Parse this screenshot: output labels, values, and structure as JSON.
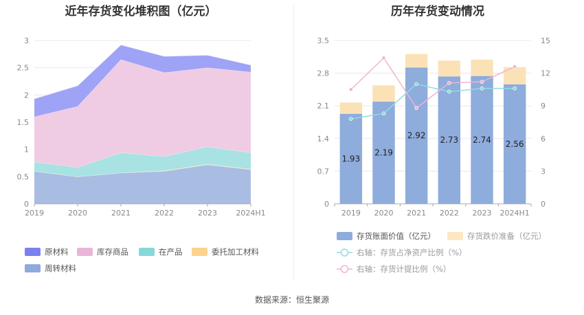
{
  "source_label": "数据来源：恒生聚源",
  "chart_data": [
    {
      "type": "area",
      "stacked": true,
      "title": "近年存货变化堆积图（亿元）",
      "categories": [
        "2019",
        "2020",
        "2021",
        "2022",
        "2023",
        "2024H1"
      ],
      "y_ticks": [
        "0",
        "0.5",
        "1",
        "1.5",
        "2",
        "2.5",
        "3"
      ],
      "ylim": [
        0,
        3
      ],
      "grid": true,
      "series": [
        {
          "name": "周转材料",
          "color": "#a9bde3",
          "values": [
            0.6,
            0.5,
            0.57,
            0.6,
            0.72,
            0.63
          ]
        },
        {
          "name": "委托加工材料",
          "color": "#fbd79a",
          "values": [
            0.0,
            0.0,
            0.0,
            0.01,
            0.01,
            0.01
          ]
        },
        {
          "name": "在产品",
          "color": "#a8e2e2",
          "values": [
            0.17,
            0.17,
            0.37,
            0.26,
            0.32,
            0.3
          ]
        },
        {
          "name": "库存商品",
          "color": "#f0cbe4",
          "values": [
            0.83,
            1.12,
            1.71,
            1.54,
            1.45,
            1.48
          ]
        },
        {
          "name": "原材料",
          "color": "#9fa3f6",
          "values": [
            0.33,
            0.38,
            0.27,
            0.3,
            0.23,
            0.13
          ]
        }
      ],
      "legend": {
        "placement": "bottom-left",
        "items": [
          {
            "label": "原材料",
            "color": "#7b80f0"
          },
          {
            "label": "库存商品",
            "color": "#eab6d8"
          },
          {
            "label": "在产品",
            "color": "#88d8d8"
          },
          {
            "label": "委托加工材料",
            "color": "#fbd38e"
          },
          {
            "label": "周转材料",
            "color": "#8faadc"
          }
        ]
      }
    },
    {
      "type": "bar",
      "stacked": true,
      "title": "历年存货变动情况",
      "categories": [
        "2019",
        "2020",
        "2021",
        "2022",
        "2023",
        "2024H1"
      ],
      "y_ticks_left": [
        "0",
        "0.7",
        "1.4",
        "2.1",
        "2.8",
        "3.5"
      ],
      "y_ticks_right": [
        "0",
        "3",
        "6",
        "9",
        "12",
        "15"
      ],
      "ylim_left": [
        0,
        3.5
      ],
      "ylim_right": [
        0,
        15
      ],
      "grid": true,
      "bars": [
        {
          "name": "存货账面价值（亿元）",
          "color": "#8eacdc",
          "values": [
            1.93,
            2.19,
            2.92,
            2.73,
            2.74,
            2.56
          ],
          "labels": [
            "1.93",
            "2.19",
            "2.92",
            "2.73",
            "2.74",
            "2.56"
          ]
        },
        {
          "name": "存货跌价准备（亿元）",
          "color": "#fbe2b6",
          "values": [
            0.24,
            0.35,
            0.29,
            0.34,
            0.35,
            0.37
          ]
        }
      ],
      "lines": [
        {
          "name": "右轴：存货占净资产比例（%）",
          "color": "#8fdede",
          "values": [
            7.8,
            8.3,
            11.0,
            10.3,
            10.6,
            10.6
          ]
        },
        {
          "name": "右轴：存货计提比例（%）",
          "color": "#eeb4d4",
          "values": [
            10.5,
            13.4,
            8.8,
            11.1,
            11.2,
            12.6
          ]
        }
      ],
      "legend": {
        "placement": "bottom",
        "items": [
          {
            "label": "存货账面价值（亿元）",
            "color": "#8eacdc",
            "kind": "rect"
          },
          {
            "label": "存货跌价准备（亿元）",
            "color": "#fde7c2",
            "kind": "rect"
          },
          {
            "label": "右轴：存货占净资产比例（%）",
            "color": "#8fdede",
            "kind": "line"
          },
          {
            "label": "右轴：存货计提比例（%）",
            "color": "#eeb4d4",
            "kind": "line"
          }
        ]
      }
    }
  ]
}
